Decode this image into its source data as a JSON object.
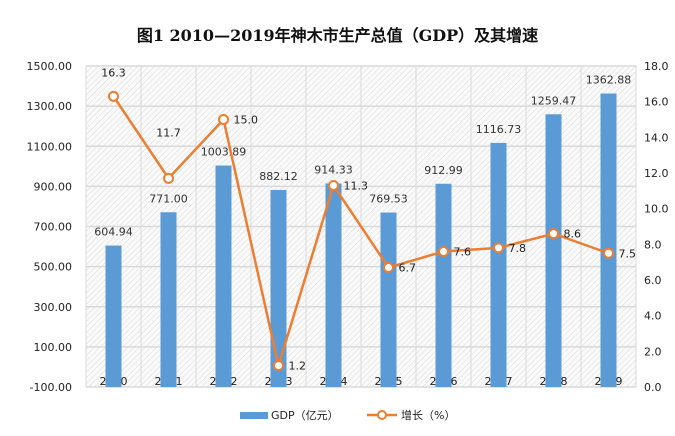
{
  "chart_data": {
    "type": "bar+line",
    "title": "图1   2010—2019年神木市生产总值（GDP）及其增速",
    "categories": [
      "2010",
      "2011",
      "2012",
      "2013",
      "2014",
      "2015",
      "2016",
      "2017",
      "2018",
      "2019"
    ],
    "series": [
      {
        "name": "GDP（亿元）",
        "type": "bar",
        "axis": "left",
        "color": "#5B9BD5",
        "values": [
          604.94,
          771.0,
          1003.89,
          882.12,
          914.33,
          769.53,
          912.99,
          1116.73,
          1259.47,
          1362.88
        ],
        "labels": [
          "604.94",
          "771.00",
          "1003.89",
          "882.12",
          "914.33",
          "769.53",
          "912.99",
          "1116.73",
          "1259.47",
          "1362.88"
        ]
      },
      {
        "name": "增长（%）",
        "type": "line",
        "axis": "right",
        "color": "#ED7D31",
        "values": [
          16.3,
          11.7,
          15.0,
          1.2,
          11.3,
          6.7,
          7.6,
          7.8,
          8.6,
          7.5
        ],
        "labels": [
          "16.3",
          "11.7",
          "15.0",
          "1.2",
          "11.3",
          "6.7",
          "7.6",
          "7.8",
          "8.6",
          "7.5"
        ]
      }
    ],
    "left_axis": {
      "ylim": [
        -100,
        1500
      ],
      "ticks": [
        "-100.00",
        "100.00",
        "300.00",
        "500.00",
        "700.00",
        "900.00",
        "1100.00",
        "1300.00",
        "1500.00"
      ]
    },
    "right_axis": {
      "ylim": [
        0,
        18
      ],
      "ticks": [
        "0.0",
        "2.0",
        "4.0",
        "6.0",
        "8.0",
        "10.0",
        "12.0",
        "14.0",
        "16.0",
        "18.0"
      ]
    },
    "grid": true,
    "legend": "bottom"
  }
}
